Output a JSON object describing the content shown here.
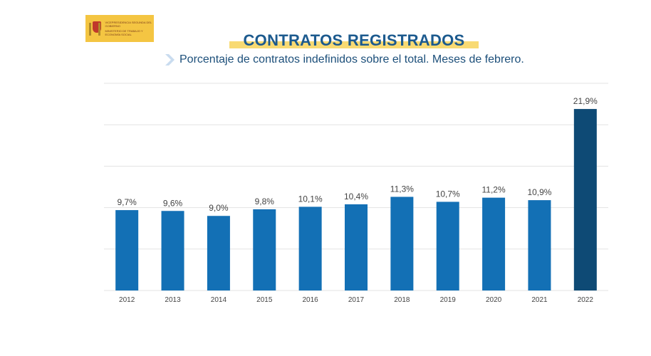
{
  "logo": {
    "line1": "Vicepresidencia Segunda del Gobierno",
    "line2": "Ministerio de Trabajo y Economía Social"
  },
  "header": {
    "title": "CONTRATOS REGISTRADOS",
    "subtitle": "Porcentaje de contratos indefinidos sobre el total. Meses de febrero."
  },
  "colors": {
    "bar": "#1370b5",
    "highlight_bar": "#0e4a75",
    "title": "#1c5a8e",
    "title_highlight": "#f7d35a"
  },
  "chart_data": {
    "type": "bar",
    "categories": [
      "2012",
      "2013",
      "2014",
      "2015",
      "2016",
      "2017",
      "2018",
      "2019",
      "2020",
      "2021",
      "2022"
    ],
    "values": [
      9.7,
      9.6,
      9.0,
      9.8,
      10.1,
      10.4,
      11.3,
      10.7,
      11.2,
      10.9,
      21.9
    ],
    "labels": [
      "9,7%",
      "9,6%",
      "9,0%",
      "9,8%",
      "10,1%",
      "10,4%",
      "11,3%",
      "10,7%",
      "11,2%",
      "10,9%",
      "21,9%"
    ],
    "ylim": [
      0,
      25
    ],
    "grid": true,
    "grid_step": 5,
    "highlighted_category": "2022",
    "xlabel": "",
    "ylabel": "",
    "title": ""
  }
}
